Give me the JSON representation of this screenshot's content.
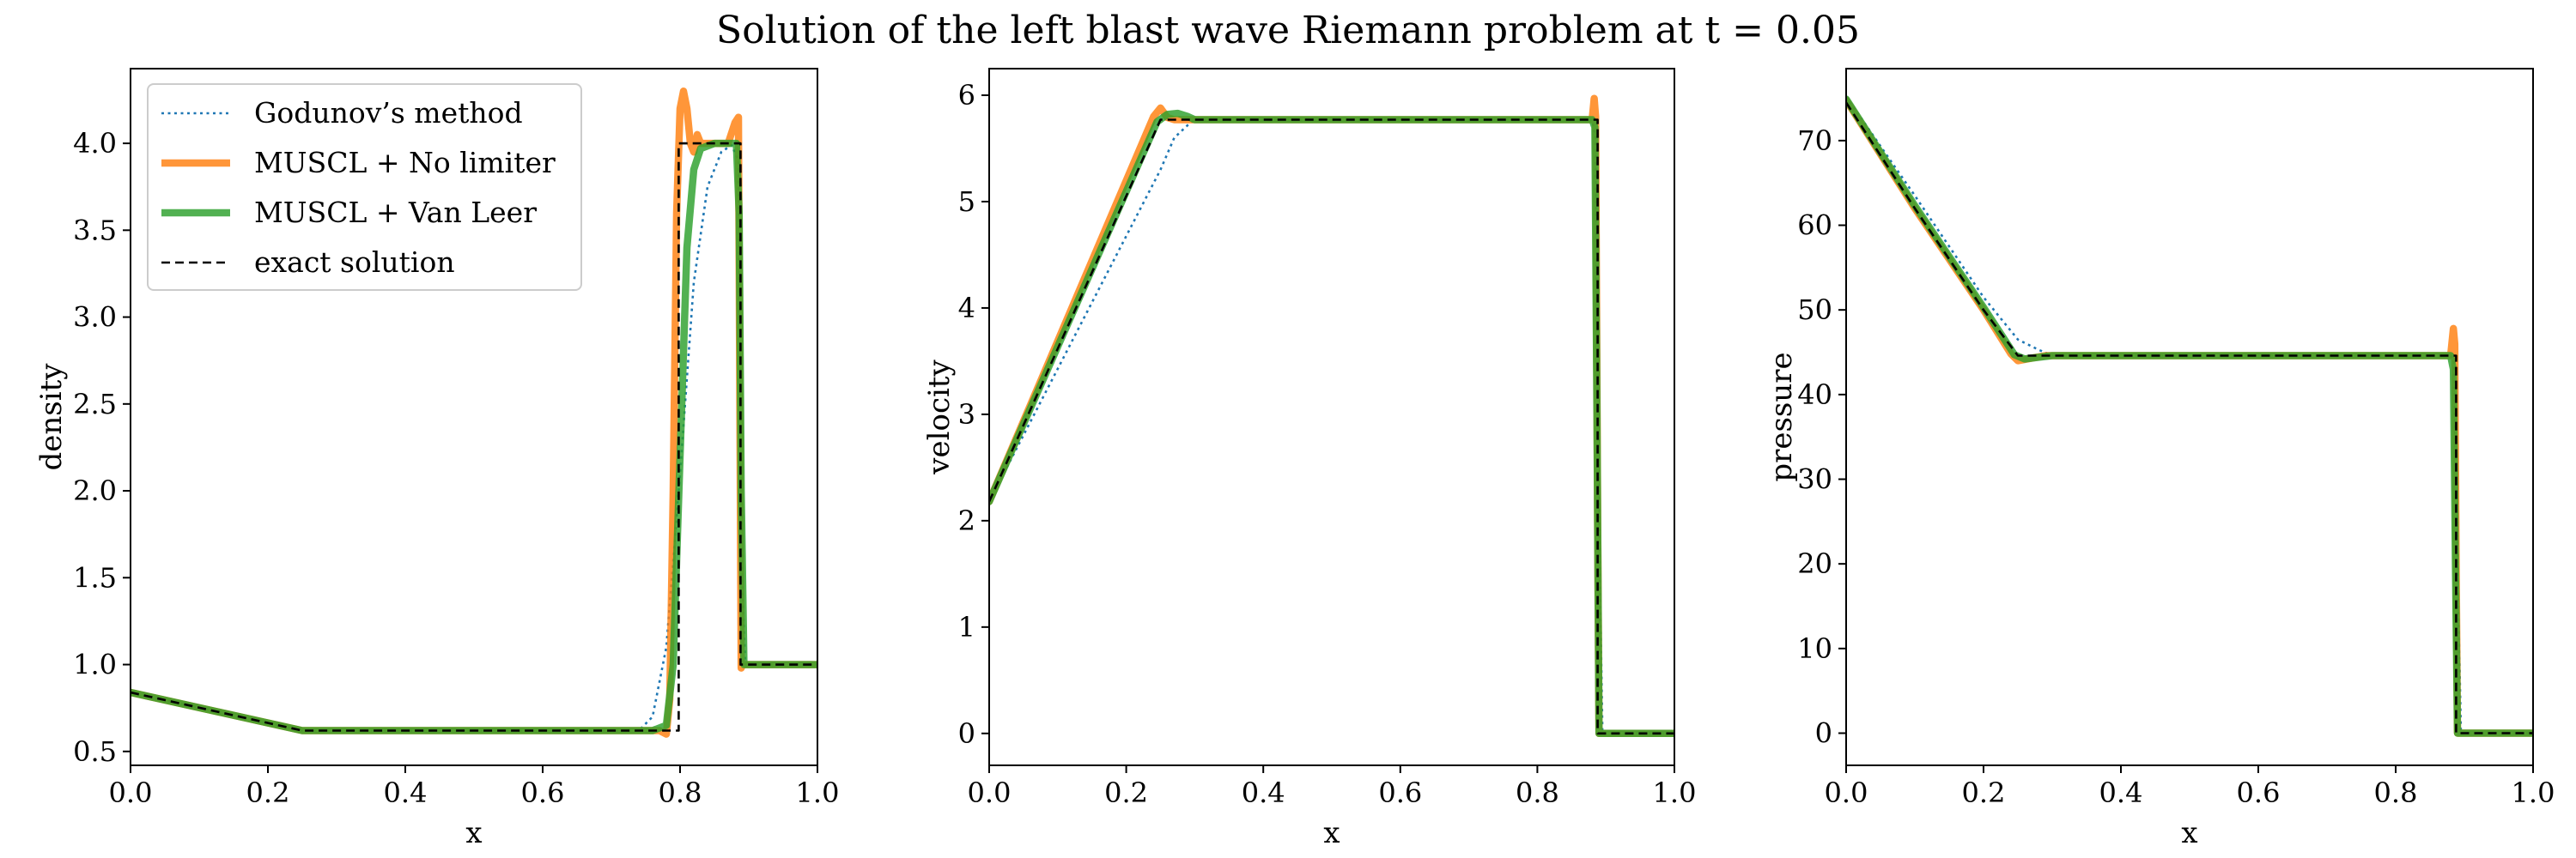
{
  "title": "Solution of the left blast wave Riemann problem at t = 0.05",
  "legend": [
    {
      "label": "Godunov’s method",
      "color": "#1f77b4",
      "style": "dotted"
    },
    {
      "label": "MUSCL + No limiter",
      "color": "#ff7f0e",
      "style": "solid-thick"
    },
    {
      "label": "MUSCL + Van Leer",
      "color": "#2ca02c",
      "style": "solid-thick"
    },
    {
      "label": "exact solution",
      "color": "#000000",
      "style": "dashed"
    }
  ],
  "chart_data": [
    {
      "type": "line",
      "xlabel": "x",
      "ylabel": "density",
      "xlim": [
        0.0,
        1.0
      ],
      "ylim": [
        0.42,
        4.43
      ],
      "xticks": [
        "0.0",
        "0.2",
        "0.4",
        "0.6",
        "0.8",
        "1.0"
      ],
      "yticks": [
        "0.5",
        "1.0",
        "1.5",
        "2.0",
        "2.5",
        "3.0",
        "3.5",
        "4.0"
      ],
      "grid": false,
      "legend_position": "upper left",
      "series": [
        {
          "name": "Godunov’s method",
          "x": [
            0.0,
            0.25,
            0.74,
            0.76,
            0.78,
            0.8,
            0.82,
            0.84,
            0.86,
            0.875,
            0.885,
            0.89,
            0.895,
            1.0
          ],
          "y": [
            0.84,
            0.62,
            0.62,
            0.7,
            1.1,
            2.1,
            3.2,
            3.75,
            3.95,
            3.99,
            3.9,
            1.5,
            1.0,
            1.0
          ]
        },
        {
          "name": "MUSCL + No limiter",
          "x": [
            0.0,
            0.25,
            0.77,
            0.78,
            0.785,
            0.79,
            0.795,
            0.8,
            0.805,
            0.81,
            0.815,
            0.82,
            0.825,
            0.83,
            0.85,
            0.87,
            0.88,
            0.885,
            0.887,
            0.889,
            0.891,
            1.0
          ],
          "y": [
            0.84,
            0.62,
            0.62,
            0.6,
            0.8,
            2.0,
            3.6,
            4.2,
            4.3,
            4.2,
            4.0,
            3.95,
            4.05,
            4.0,
            4.0,
            4.0,
            4.12,
            4.15,
            2.5,
            0.98,
            1.0,
            1.0
          ]
        },
        {
          "name": "MUSCL + Van Leer",
          "x": [
            0.0,
            0.25,
            0.76,
            0.78,
            0.79,
            0.8,
            0.81,
            0.82,
            0.83,
            0.85,
            0.87,
            0.882,
            0.886,
            0.889,
            0.893,
            1.0
          ],
          "y": [
            0.84,
            0.62,
            0.62,
            0.65,
            1.0,
            2.2,
            3.4,
            3.85,
            3.97,
            4.0,
            4.0,
            4.0,
            3.6,
            2.0,
            1.0,
            1.0
          ]
        },
        {
          "name": "exact solution",
          "x": [
            0.0,
            0.25,
            0.798,
            0.798,
            0.888,
            0.888,
            1.0
          ],
          "y": [
            0.84,
            0.62,
            0.62,
            4.0,
            4.0,
            1.0,
            1.0
          ]
        }
      ]
    },
    {
      "type": "line",
      "xlabel": "x",
      "ylabel": "velocity",
      "xlim": [
        0.0,
        1.0
      ],
      "ylim": [
        -0.3,
        6.25
      ],
      "xticks": [
        "0.0",
        "0.2",
        "0.4",
        "0.6",
        "0.8",
        "1.0"
      ],
      "yticks": [
        "0",
        "1",
        "2",
        "3",
        "4",
        "5",
        "6"
      ],
      "grid": false,
      "series": [
        {
          "name": "Godunov’s method",
          "x": [
            0.0,
            0.25,
            0.27,
            0.29,
            0.3,
            0.88,
            0.885,
            0.89,
            0.895,
            1.0
          ],
          "y": [
            2.18,
            5.3,
            5.6,
            5.72,
            5.77,
            5.77,
            5.6,
            2.0,
            0.0,
            0.0
          ]
        },
        {
          "name": "MUSCL + No limiter",
          "x": [
            0.0,
            0.24,
            0.25,
            0.26,
            0.27,
            0.88,
            0.883,
            0.885,
            0.888,
            0.89,
            1.0
          ],
          "y": [
            2.18,
            5.8,
            5.88,
            5.79,
            5.77,
            5.77,
            5.97,
            5.8,
            2.0,
            0.0,
            0.0
          ]
        },
        {
          "name": "MUSCL + Van Leer",
          "x": [
            0.0,
            0.245,
            0.26,
            0.275,
            0.29,
            0.3,
            0.88,
            0.884,
            0.887,
            0.89,
            1.0
          ],
          "y": [
            2.18,
            5.75,
            5.82,
            5.83,
            5.8,
            5.77,
            5.77,
            5.7,
            3.0,
            0.0,
            0.0
          ]
        },
        {
          "name": "exact solution",
          "x": [
            0.0,
            0.25,
            0.888,
            0.888,
            1.0
          ],
          "y": [
            2.18,
            5.77,
            5.77,
            0.0,
            0.0
          ]
        }
      ]
    },
    {
      "type": "line",
      "xlabel": "x",
      "ylabel": "pressure",
      "xlim": [
        0.0,
        1.0
      ],
      "ylim": [
        -3.8,
        78.5
      ],
      "xticks": [
        "0.0",
        "0.2",
        "0.4",
        "0.6",
        "0.8",
        "1.0"
      ],
      "yticks": [
        "0",
        "10",
        "20",
        "30",
        "40",
        "50",
        "60",
        "70"
      ],
      "grid": false,
      "series": [
        {
          "name": "Godunov’s method",
          "x": [
            0.0,
            0.1,
            0.2,
            0.25,
            0.28,
            0.3,
            0.88,
            0.885,
            0.89,
            0.895,
            1.0
          ],
          "y": [
            75.2,
            63.5,
            51.5,
            46.5,
            45.3,
            44.6,
            44.6,
            44.0,
            20.0,
            0.0,
            0.0
          ]
        },
        {
          "name": "MUSCL + No limiter",
          "x": [
            0.0,
            0.1,
            0.2,
            0.24,
            0.25,
            0.27,
            0.29,
            0.88,
            0.884,
            0.886,
            0.888,
            0.89,
            1.0
          ],
          "y": [
            74.8,
            62.0,
            50.0,
            44.8,
            44.0,
            44.3,
            44.6,
            44.6,
            47.8,
            46.0,
            20.0,
            0.0,
            0.0
          ]
        },
        {
          "name": "MUSCL + Van Leer",
          "x": [
            0.0,
            0.1,
            0.2,
            0.245,
            0.26,
            0.28,
            0.3,
            0.88,
            0.884,
            0.887,
            0.89,
            1.0
          ],
          "y": [
            74.9,
            62.3,
            50.3,
            44.7,
            44.2,
            44.4,
            44.6,
            44.6,
            43.0,
            20.0,
            0.0,
            0.0
          ]
        },
        {
          "name": "exact solution",
          "x": [
            0.0,
            0.1,
            0.2,
            0.25,
            0.888,
            0.888,
            1.0
          ],
          "y": [
            74.5,
            62.0,
            50.0,
            44.6,
            44.6,
            0.0,
            0.0
          ]
        }
      ]
    }
  ]
}
